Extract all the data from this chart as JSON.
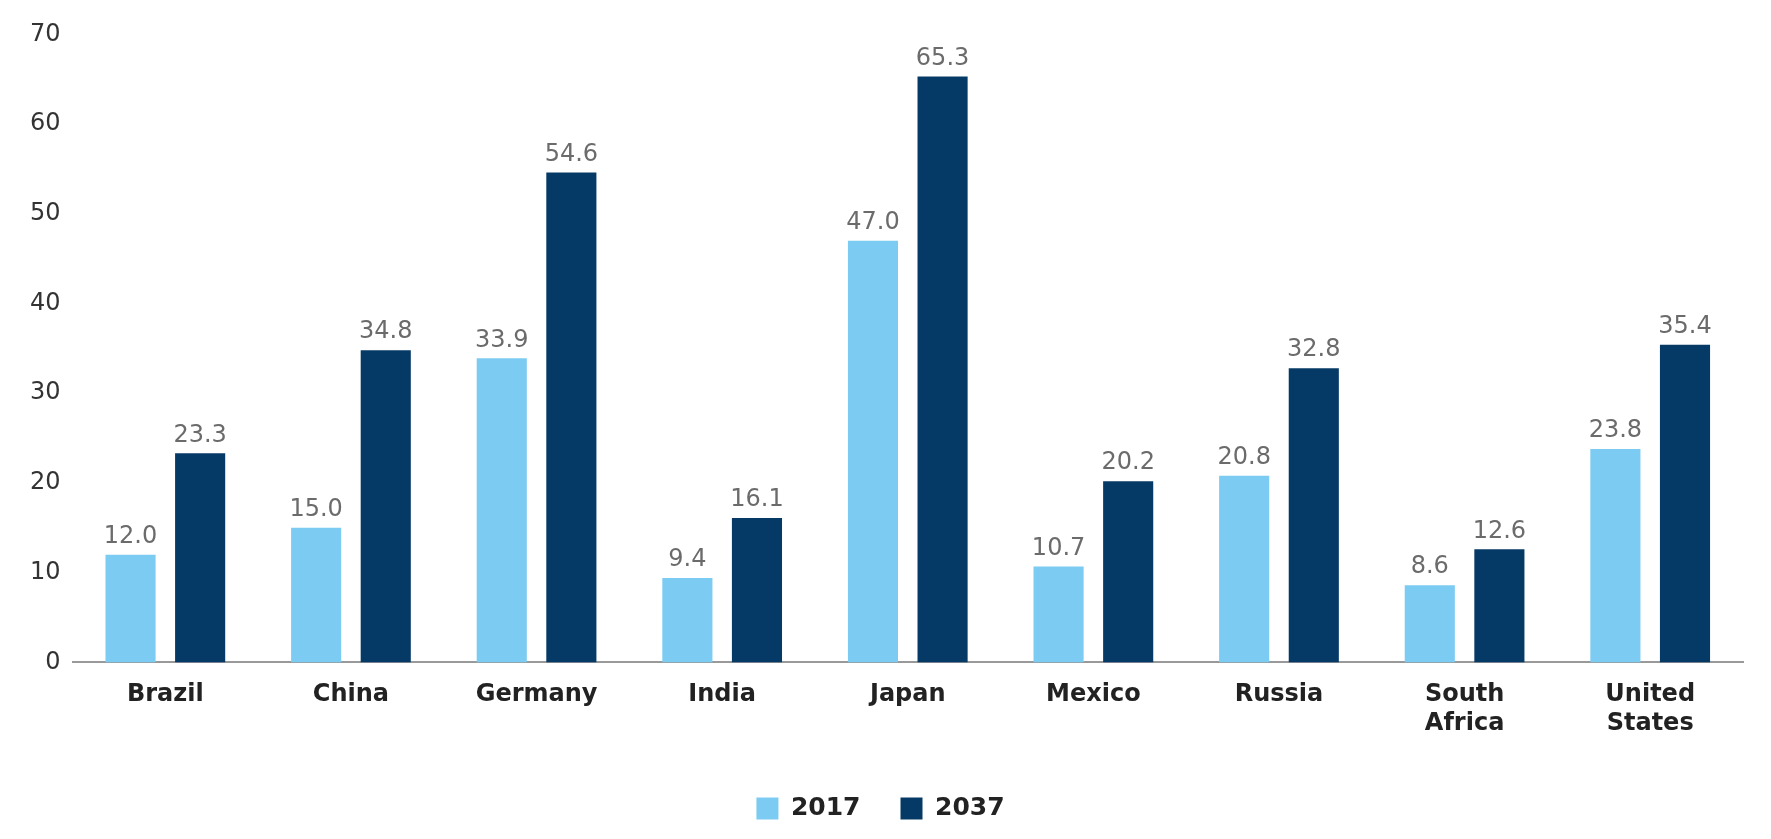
{
  "chart_data": {
    "type": "bar",
    "categories": [
      "Brazil",
      "China",
      "Germany",
      "India",
      "Japan",
      "Mexico",
      "Russia",
      "South Africa",
      "United States"
    ],
    "series": [
      {
        "name": "2017",
        "color": "#7ccbf2",
        "values": [
          12.0,
          15.0,
          33.9,
          9.4,
          47.0,
          10.7,
          20.8,
          8.6,
          23.8
        ],
        "value_labels": [
          "12.0",
          "15.0",
          "33.9",
          "9.4",
          "47.0",
          "10.7",
          "20.8",
          "8.6",
          "23.8"
        ]
      },
      {
        "name": "2037",
        "color": "#063a66",
        "values": [
          23.3,
          34.8,
          54.6,
          16.1,
          65.3,
          20.2,
          32.8,
          12.6,
          35.4
        ],
        "value_labels": [
          "23.3",
          "34.8",
          "54.6",
          "16.1",
          "65.3",
          "20.2",
          "32.8",
          "12.6",
          "35.4"
        ]
      }
    ],
    "ylim": [
      0,
      70
    ],
    "yticks": [
      0,
      10,
      20,
      30,
      40,
      50,
      60,
      70
    ],
    "grid": false,
    "legend": "bottom"
  }
}
